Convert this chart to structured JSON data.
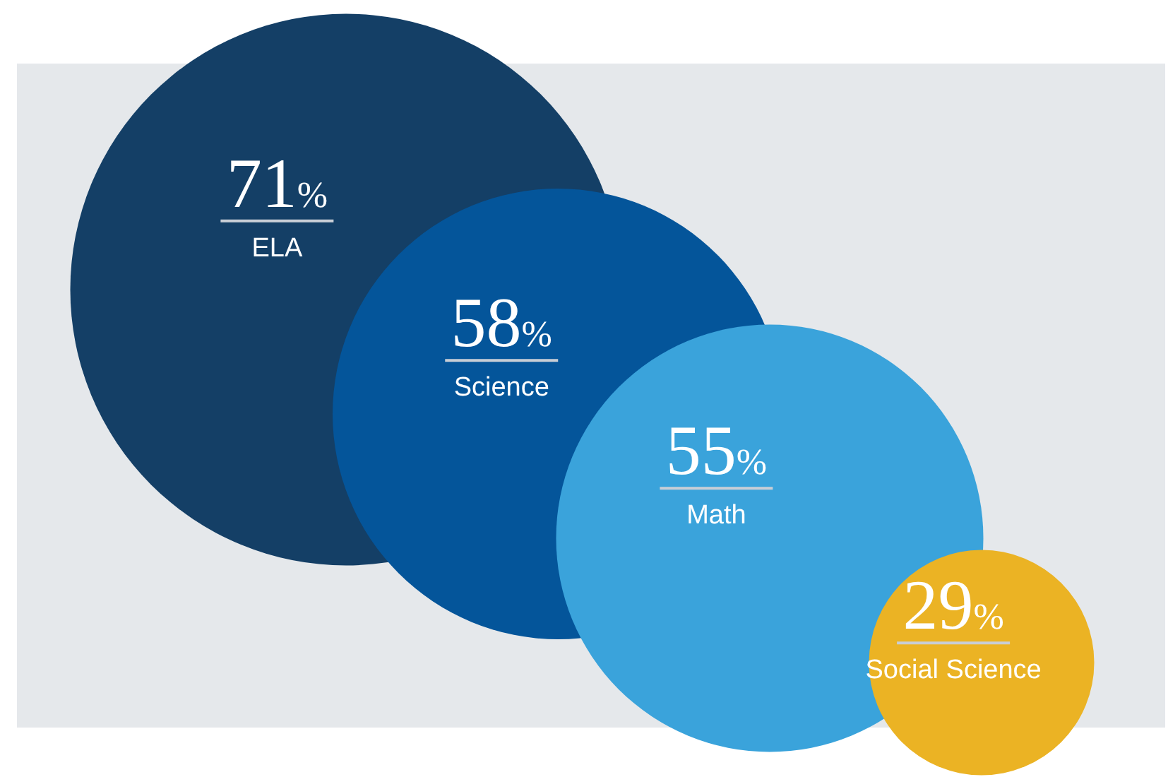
{
  "chart_data": {
    "type": "other",
    "categories": [
      "ELA",
      "Science",
      "Math",
      "Social Science"
    ],
    "values": [
      71,
      58,
      55,
      29
    ],
    "value_labels": [
      "71%",
      "58%",
      "55%",
      "29%"
    ],
    "colors": [
      "#143f66",
      "#04559a",
      "#3aa3db",
      "#ebb324"
    ]
  }
}
